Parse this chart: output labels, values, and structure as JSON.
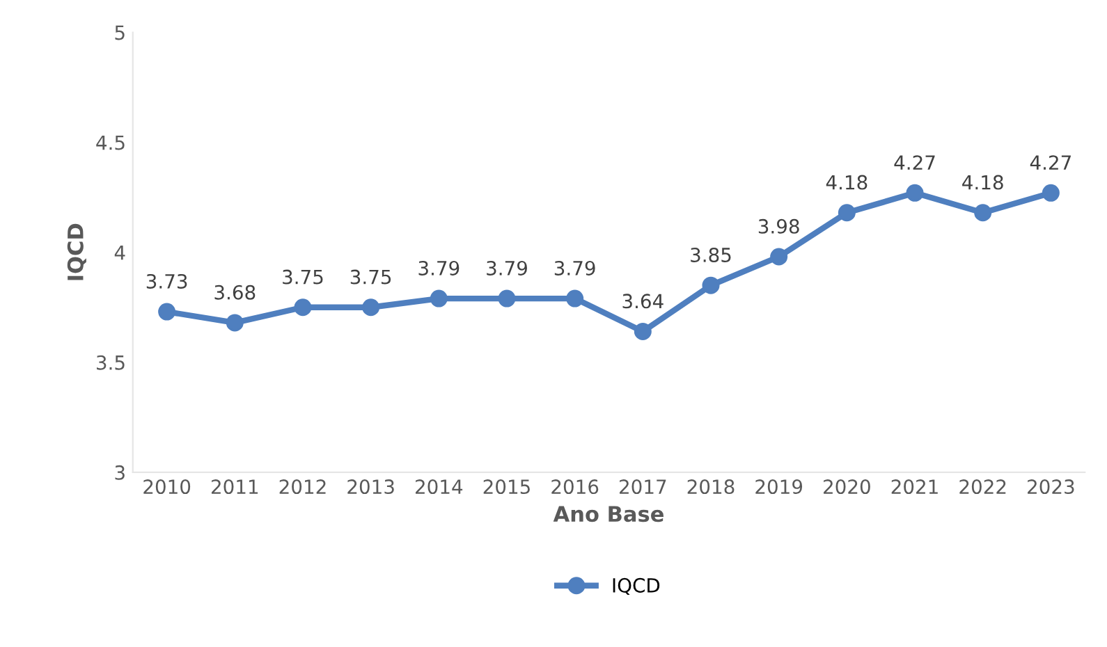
{
  "chart_data": {
    "type": "line",
    "xlabel": "Ano Base",
    "ylabel": "IQCD",
    "categories": [
      "2010",
      "2011",
      "2012",
      "2013",
      "2014",
      "2015",
      "2016",
      "2017",
      "2018",
      "2019",
      "2020",
      "2021",
      "2022",
      "2023"
    ],
    "series": [
      {
        "name": "IQCD",
        "color": "#4f7fbf",
        "values": [
          3.73,
          3.68,
          3.75,
          3.75,
          3.79,
          3.79,
          3.79,
          3.64,
          3.85,
          3.98,
          4.18,
          4.27,
          4.18,
          4.27
        ]
      }
    ],
    "ylim": [
      3,
      5
    ],
    "yticks": [
      3,
      3.5,
      4,
      4.5,
      5
    ],
    "grid": false,
    "legend": "bottom",
    "marker": "circle",
    "line_style": "solid",
    "data_labels": true
  }
}
